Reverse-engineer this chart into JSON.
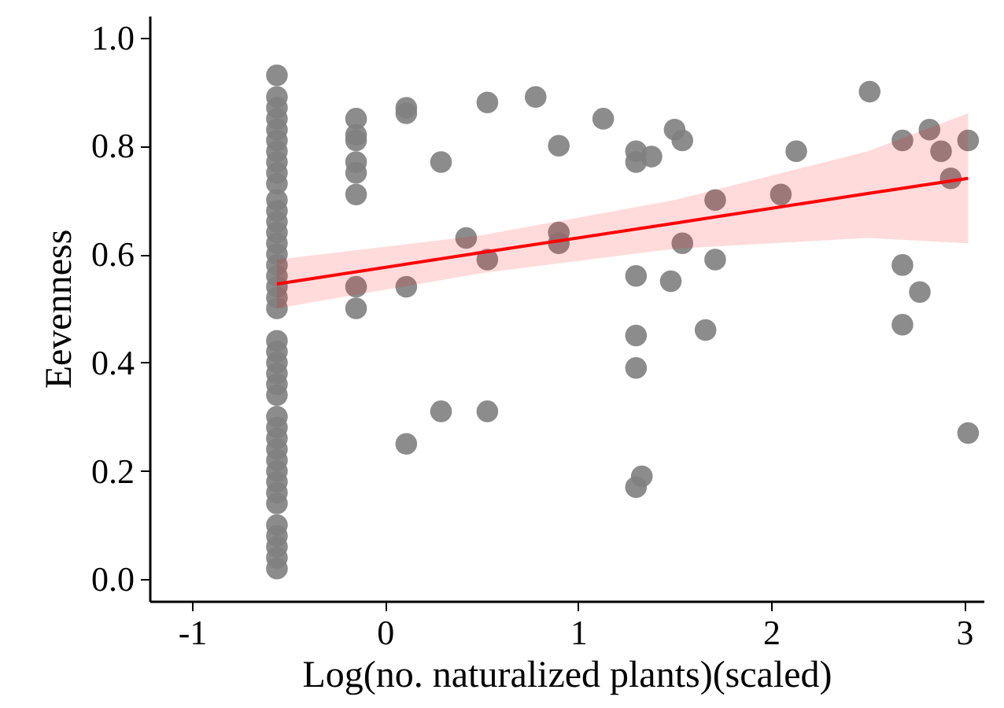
{
  "chart_data": {
    "type": "scatter",
    "xlabel": "Log(no. naturalized plants)(scaled)",
    "ylabel": "Eevenness",
    "xlim": [
      -1.22,
      3.1
    ],
    "ylim": [
      -0.04,
      1.04
    ],
    "xticks": [
      -1,
      0,
      1,
      2,
      3
    ],
    "yticks": [
      {
        "value": 0,
        "label": "0.0"
      },
      {
        "value": 0.2,
        "label": "0.2"
      },
      {
        "value": 0.4,
        "label": "0.4"
      },
      {
        "value": 0.6,
        "label": "0.6"
      },
      {
        "value": 0.8,
        "label": "0.8"
      },
      {
        "value": 1,
        "label": "1.0"
      }
    ],
    "grid": false,
    "series": [
      {
        "color": "#7f7f7f",
        "marker": "circle",
        "x": [
          -0.56,
          -0.56,
          -0.56,
          -0.56,
          -0.56,
          -0.56,
          -0.56,
          -0.56,
          -0.56,
          -0.56,
          -0.56,
          -0.56,
          -0.56,
          -0.56,
          -0.56,
          -0.56,
          -0.56,
          -0.56,
          -0.56,
          -0.56,
          -0.56,
          -0.56,
          -0.56,
          -0.56,
          -0.56,
          -0.56,
          -0.56,
          -0.56,
          -0.56,
          -0.56,
          -0.56,
          -0.56,
          -0.56,
          -0.56,
          -0.56,
          -0.56,
          -0.56,
          -0.56,
          -0.56,
          -0.56,
          -0.56,
          -0.15,
          -0.15,
          -0.15,
          -0.15,
          -0.15,
          -0.15,
          -0.15,
          -0.15,
          0.11,
          0.11,
          0.11,
          0.11,
          0.29,
          0.29,
          0.42,
          0.53,
          0.53,
          0.53,
          0.78,
          0.9,
          0.9,
          0.9,
          1.13,
          1.3,
          1.3,
          1.3,
          1.3,
          1.3,
          1.3,
          1.33,
          1.38,
          1.5,
          1.54,
          1.54,
          1.48,
          1.71,
          1.71,
          1.66,
          2.05,
          2.13,
          2.51,
          2.68,
          2.68,
          2.68,
          2.77,
          2.82,
          2.88,
          2.93,
          3.02,
          3.02
        ],
        "values": [
          0.93,
          0.89,
          0.87,
          0.85,
          0.83,
          0.81,
          0.79,
          0.77,
          0.75,
          0.73,
          0.7,
          0.68,
          0.66,
          0.64,
          0.62,
          0.6,
          0.58,
          0.56,
          0.54,
          0.52,
          0.5,
          0.44,
          0.42,
          0.4,
          0.38,
          0.36,
          0.34,
          0.3,
          0.28,
          0.26,
          0.24,
          0.22,
          0.2,
          0.18,
          0.16,
          0.14,
          0.1,
          0.08,
          0.06,
          0.04,
          0.02,
          0.85,
          0.82,
          0.81,
          0.77,
          0.75,
          0.71,
          0.54,
          0.5,
          0.87,
          0.86,
          0.54,
          0.25,
          0.77,
          0.31,
          0.63,
          0.88,
          0.59,
          0.31,
          0.89,
          0.8,
          0.64,
          0.62,
          0.85,
          0.79,
          0.77,
          0.56,
          0.45,
          0.39,
          0.17,
          0.19,
          0.78,
          0.83,
          0.81,
          0.62,
          0.55,
          0.7,
          0.59,
          0.46,
          0.71,
          0.79,
          0.9,
          0.81,
          0.58,
          0.47,
          0.53,
          0.83,
          0.79,
          0.74,
          0.81,
          0.27
        ]
      },
      {
        "type": "line",
        "color": "#ff0000",
        "x": [
          -0.56,
          0.5,
          1.5,
          2.5,
          3.02
        ],
        "values": [
          0.545,
          0.603,
          0.657,
          0.712,
          0.74
        ],
        "lower": [
          0.5,
          0.565,
          0.61,
          0.63,
          0.62
        ],
        "upper": [
          0.59,
          0.635,
          0.7,
          0.79,
          0.86
        ]
      }
    ]
  }
}
